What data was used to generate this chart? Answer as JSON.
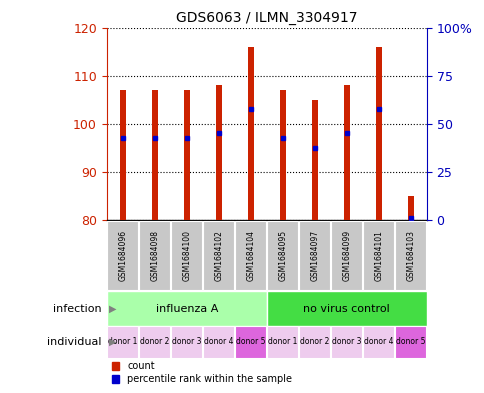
{
  "title": "GDS6063 / ILMN_3304917",
  "samples": [
    "GSM1684096",
    "GSM1684098",
    "GSM1684100",
    "GSM1684102",
    "GSM1684104",
    "GSM1684095",
    "GSM1684097",
    "GSM1684099",
    "GSM1684101",
    "GSM1684103"
  ],
  "bar_top": [
    107,
    107,
    107,
    108,
    116,
    107,
    105,
    108,
    116,
    85
  ],
  "bar_bottom": [
    80,
    80,
    80,
    80,
    80,
    80,
    80,
    80,
    80,
    80
  ],
  "blue_dot_y": [
    97,
    97,
    97,
    98,
    103,
    97,
    95,
    98,
    103,
    80.5
  ],
  "ylim_left": [
    80,
    120
  ],
  "ylim_right": [
    0,
    100
  ],
  "yticks_left": [
    80,
    90,
    100,
    110,
    120
  ],
  "yticks_right": [
    0,
    25,
    50,
    75,
    100
  ],
  "infection_groups": [
    {
      "label": "influenza A",
      "start": 0,
      "end": 5,
      "color": "#AAFFAA"
    },
    {
      "label": "no virus control",
      "start": 5,
      "end": 10,
      "color": "#44DD44"
    }
  ],
  "individual_labels": [
    "donor 1",
    "donor 2",
    "donor 3",
    "donor 4",
    "donor 5",
    "donor 1",
    "donor 2",
    "donor 3",
    "donor 4",
    "donor 5"
  ],
  "individual_colors": [
    "#EECCEE",
    "#EECCEE",
    "#EECCEE",
    "#EECCEE",
    "#DD66DD",
    "#EECCEE",
    "#EECCEE",
    "#EECCEE",
    "#EECCEE",
    "#DD66DD"
  ],
  "bar_color": "#CC2200",
  "blue_color": "#0000CC",
  "sample_bg_color": "#C8C8C8",
  "left_tick_color": "#CC2200",
  "right_tick_color": "#0000BB",
  "bar_width": 0.18
}
